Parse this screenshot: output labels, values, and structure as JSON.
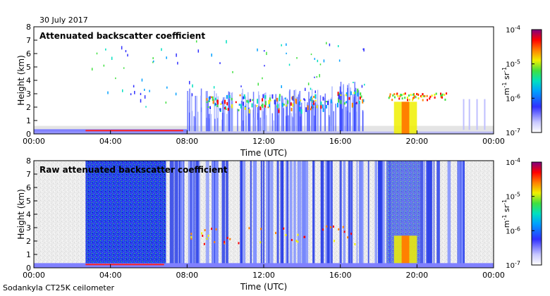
{
  "header": {
    "date": "30 July 2017"
  },
  "footer": {
    "instrument": "Sodankyla CT25K ceilometer"
  },
  "colorbar": {
    "ticks": [
      "10",
      "10",
      "10",
      "10"
    ],
    "exponents": [
      "-4",
      "-5",
      "-6",
      "-7"
    ],
    "unit": "m",
    "unit_exp1": "-1",
    "unit_sr": " sr",
    "unit_exp2": "-1"
  },
  "chart_data": [
    {
      "type": "heatmap",
      "title": "Attenuated backscatter coefficient",
      "xlabel": "Time (UTC)",
      "ylabel": "Height (km)",
      "xticks": [
        "00:00",
        "04:00",
        "08:00",
        "12:00",
        "16:00",
        "20:00",
        "00:00"
      ],
      "yticks": [
        "0",
        "1",
        "2",
        "3",
        "4",
        "5",
        "6",
        "7",
        "8"
      ],
      "xlim": [
        0,
        24
      ],
      "ylim": [
        0,
        8
      ],
      "colorscale": "log",
      "clim": [
        1e-07,
        0.0001
      ],
      "features": [
        {
          "feature": "boundary layer",
          "start": 0,
          "end": 8,
          "height": 0.3
        },
        {
          "feature": "cloud layer",
          "start": 8.5,
          "end": 17,
          "height": 2.5
        },
        {
          "feature": "cloud layer",
          "start": 18.5,
          "end": 21.5,
          "height": 2.8
        },
        {
          "feature": "precipitation",
          "start": 18.8,
          "end": 20.0,
          "height": 0
        }
      ]
    },
    {
      "type": "heatmap",
      "title": "Raw attenuated backscatter coefficient",
      "xlabel": "Time (UTC)",
      "ylabel": "Height (km)",
      "xticks": [
        "00:00",
        "04:00",
        "08:00",
        "12:00",
        "16:00",
        "20:00",
        "00:00"
      ],
      "yticks": [
        "0",
        "1",
        "2",
        "3",
        "4",
        "5",
        "6",
        "7",
        "8"
      ],
      "xlim": [
        0,
        24
      ],
      "ylim": [
        0,
        8
      ],
      "colorscale": "log",
      "clim": [
        1e-07,
        0.0001
      ]
    }
  ]
}
